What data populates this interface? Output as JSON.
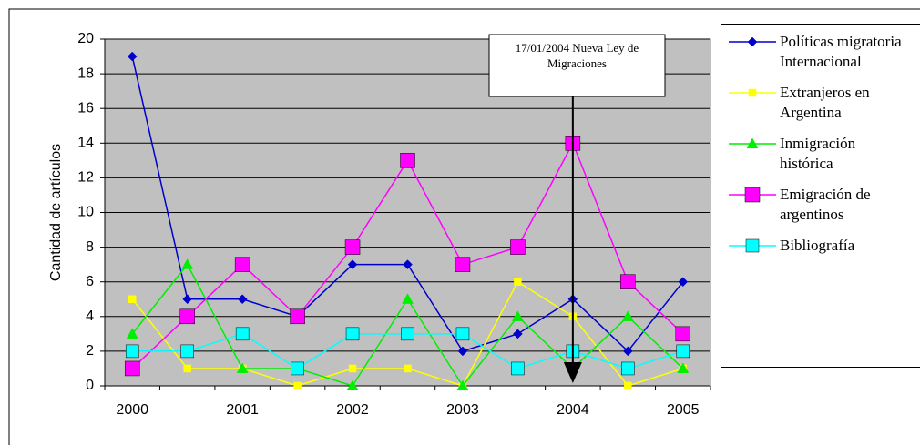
{
  "chart_data": {
    "type": "line",
    "y_label": "Cantidad de artículos",
    "annotation": "17/01/2004 Nueva Ley de Migraciones",
    "annotation_at": 8,
    "categories": [
      "2000",
      null,
      "2001",
      null,
      "2002",
      null,
      "2003",
      null,
      "2004",
      null,
      "2005"
    ],
    "series": [
      {
        "name": "Políticas migratoria Internacional",
        "color": "#0000cc",
        "marker": "diamond",
        "values": [
          19,
          5,
          5,
          4,
          7,
          7,
          2,
          3,
          5,
          2,
          6
        ]
      },
      {
        "name": "Extranjeros en Argentina",
        "color": "#ffff00",
        "marker": "square",
        "values": [
          5,
          1,
          1,
          0,
          1,
          1,
          0,
          6,
          4,
          0,
          1
        ]
      },
      {
        "name": "Inmigración histórica",
        "color": "#00ee00",
        "marker": "triangle",
        "values": [
          3,
          7,
          1,
          1,
          0,
          5,
          0,
          4,
          1,
          4,
          1
        ]
      },
      {
        "name": "Emigración de argentinos",
        "color": "#ff00ff",
        "marker": "square",
        "values": [
          1,
          4,
          7,
          4,
          8,
          13,
          7,
          8,
          14,
          6,
          3
        ]
      },
      {
        "name": "Bibliografía",
        "color": "#00ffff",
        "marker": "square",
        "values": [
          2,
          2,
          3,
          1,
          3,
          3,
          3,
          1,
          2,
          1,
          2
        ]
      }
    ],
    "ylim": [
      0,
      20
    ],
    "yticks": [
      0,
      2,
      4,
      6,
      8,
      10,
      12,
      14,
      16,
      18,
      20
    ],
    "grid": true,
    "background": "#c0c0c0"
  }
}
